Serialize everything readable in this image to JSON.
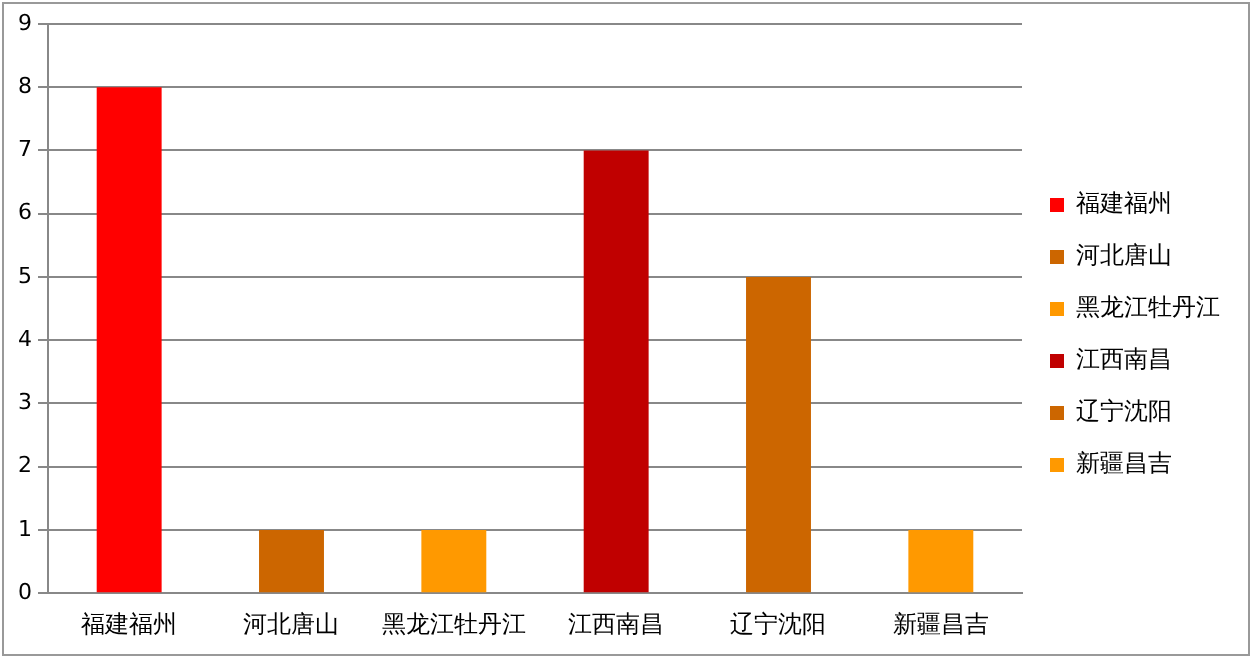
{
  "chart_data": {
    "type": "bar",
    "categories": [
      "福建福州",
      "河北唐山",
      "黑龙江牡丹江",
      "江西南昌",
      "辽宁沈阳",
      "新疆昌吉"
    ],
    "series": [
      {
        "name": "福建福州",
        "color": "#ff0000",
        "values": [
          8,
          null,
          null,
          null,
          null,
          null
        ]
      },
      {
        "name": "河北唐山",
        "color": "#cc6600",
        "values": [
          null,
          1,
          null,
          null,
          null,
          null
        ]
      },
      {
        "name": "黑龙江牡丹江",
        "color": "#ff9900",
        "values": [
          null,
          null,
          1,
          null,
          null,
          null
        ]
      },
      {
        "name": "江西南昌",
        "color": "#c00000",
        "values": [
          null,
          null,
          null,
          7,
          null,
          null
        ]
      },
      {
        "name": "辽宁沈阳",
        "color": "#cc6600",
        "values": [
          null,
          null,
          null,
          null,
          5,
          null
        ]
      },
      {
        "name": "新疆昌吉",
        "color": "#ff9900",
        "values": [
          null,
          null,
          null,
          null,
          null,
          1
        ]
      }
    ],
    "ylim": [
      0,
      9
    ],
    "yticks": [
      0,
      1,
      2,
      3,
      4,
      5,
      6,
      7,
      8,
      9
    ],
    "grid": "y",
    "legend": "right"
  }
}
